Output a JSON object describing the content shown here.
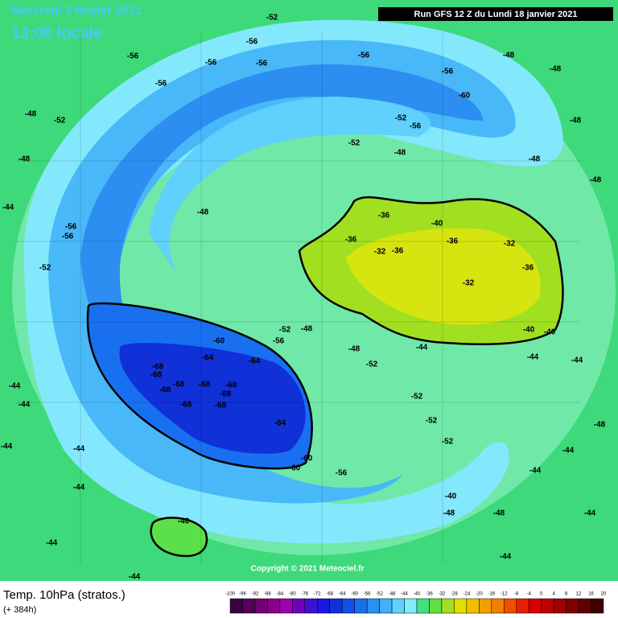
{
  "header": {
    "date": "Mercredi 3 février 2021",
    "time": "13:00 locale",
    "run": "Run GFS 12 Z du Lundi 18 janvier 2021"
  },
  "copyright": "Copyright © 2021 Meteociel.fr",
  "footer": {
    "title": "Temp. 10hPa (stratos.)",
    "lead": "(+ 384h)"
  },
  "legend": {
    "ticks": [
      -100,
      -96,
      -92,
      -88,
      -84,
      -80,
      -76,
      -72,
      -68,
      -64,
      -60,
      -56,
      -52,
      -48,
      -44,
      -40,
      -36,
      -32,
      -28,
      -24,
      -20,
      -16,
      -12,
      -8,
      -4,
      0,
      4,
      8,
      12,
      16,
      20
    ],
    "colors": [
      "#3a0040",
      "#55005a",
      "#700070",
      "#8a008a",
      "#a000a8",
      "#7000c0",
      "#4010d0",
      "#1818e0",
      "#1030d8",
      "#1050e8",
      "#1870f0",
      "#2890f0",
      "#40b0f8",
      "#60d0fc",
      "#80ecfc",
      "#40e080",
      "#60e040",
      "#a0e020",
      "#e0e000",
      "#f0c000",
      "#f0a000",
      "#f08000",
      "#f05000",
      "#e82000",
      "#d80000",
      "#c00000",
      "#a00000",
      "#800000",
      "#600000",
      "#400000"
    ]
  },
  "contour_labels": [
    "-56",
    "-56",
    "-56",
    "-52",
    "-56",
    "-56",
    "-56",
    "-60",
    "-48",
    "-48",
    "-56",
    "-52",
    "-48",
    "-48",
    "-44",
    "-56",
    "-56",
    "-52",
    "-48",
    "-36",
    "-40",
    "-36",
    "-36",
    "-32",
    "-32",
    "-36",
    "-36",
    "-32",
    "-40",
    "-40",
    "-44",
    "-60",
    "-56",
    "-52",
    "-48",
    "-64",
    "-64",
    "-68",
    "-68",
    "-68",
    "-68",
    "-68",
    "-68",
    "-68",
    "-68",
    "-68",
    "-64",
    "-52",
    "-52",
    "-52",
    "-52",
    "-60",
    "-60",
    "-56",
    "-44",
    "-44",
    "-40",
    "-44",
    "-44",
    "-40",
    "-48",
    "-48",
    "-44",
    "-44",
    "-44",
    "-44",
    "-44",
    "-48",
    "-44",
    "-44",
    "-44",
    "-44",
    "-48",
    "-48",
    "-52",
    "-52",
    "-56",
    "-48",
    "-48",
    "-48"
  ]
}
